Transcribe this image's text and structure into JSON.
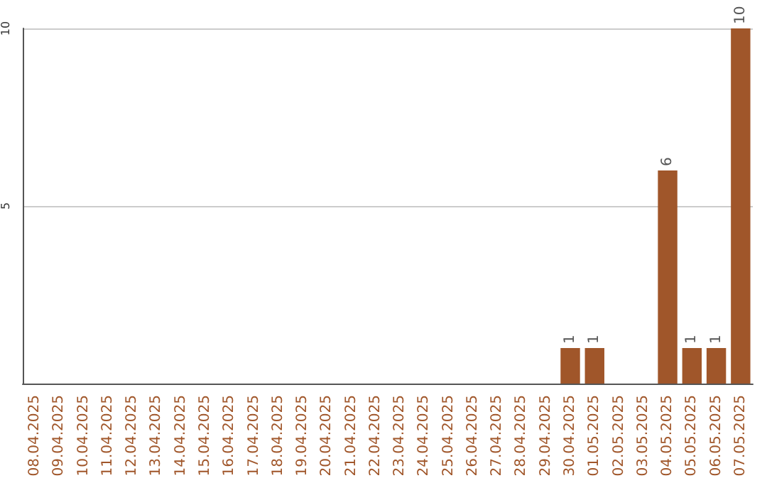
{
  "chart_data": {
    "type": "bar",
    "categories": [
      "08.04.2025",
      "09.04.2025",
      "10.04.2025",
      "11.04.2025",
      "12.04.2025",
      "13.04.2025",
      "14.04.2025",
      "15.04.2025",
      "16.04.2025",
      "17.04.2025",
      "18.04.2025",
      "19.04.2025",
      "20.04.2025",
      "21.04.2025",
      "22.04.2025",
      "23.04.2025",
      "24.04.2025",
      "25.04.2025",
      "26.04.2025",
      "27.04.2025",
      "28.04.2025",
      "29.04.2025",
      "30.04.2025",
      "01.05.2025",
      "02.05.2025",
      "03.05.2025",
      "04.05.2025",
      "05.05.2025",
      "06.05.2025",
      "07.05.2025"
    ],
    "values": [
      0,
      0,
      0,
      0,
      0,
      0,
      0,
      0,
      0,
      0,
      0,
      0,
      0,
      0,
      0,
      0,
      0,
      0,
      0,
      0,
      0,
      0,
      1,
      1,
      0,
      0,
      6,
      1,
      1,
      10
    ],
    "value_labels": [
      null,
      null,
      null,
      null,
      null,
      null,
      null,
      null,
      null,
      null,
      null,
      null,
      null,
      null,
      null,
      null,
      null,
      null,
      null,
      null,
      null,
      null,
      "1",
      "1",
      null,
      null,
      "6",
      "1",
      "1",
      "10"
    ],
    "color": "#a0562a",
    "ylim": [
      0,
      10
    ],
    "yticks": [
      5,
      10
    ],
    "grid": "y"
  }
}
